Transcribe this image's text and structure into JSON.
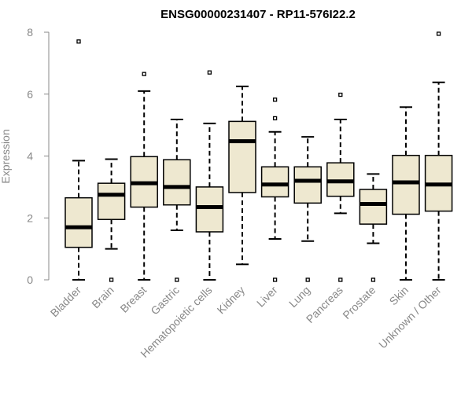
{
  "colors": {
    "box_fill": "#EEE8D0",
    "median": "#000000",
    "axis": "#888888",
    "title": "#000000"
  },
  "chart_data": {
    "type": "boxplot",
    "title": "ENSG00000231407 - RP11-576I22.2",
    "xlabel": "",
    "ylabel": "Expression",
    "ylim": [
      0,
      8
    ],
    "yticks": [
      "0",
      "2",
      "4",
      "6",
      "8"
    ],
    "categories": [
      "Bladder",
      "Brain",
      "Breast",
      "Gastric",
      "Hematopoietic cells",
      "Kidney",
      "Liver",
      "Lung",
      "Pancreas",
      "Prostate",
      "Skin",
      "Unknown / Other"
    ],
    "boxes": [
      {
        "category": "Bladder",
        "whisker_low": 0.0,
        "q1": 1.05,
        "median": 1.7,
        "q3": 2.65,
        "whisker_high": 3.85,
        "outliers": [
          7.7
        ]
      },
      {
        "category": "Brain",
        "whisker_low": 1.0,
        "q1": 1.95,
        "median": 2.75,
        "q3": 3.12,
        "whisker_high": 3.9,
        "outliers": [
          0.0
        ]
      },
      {
        "category": "Breast",
        "whisker_low": 0.0,
        "q1": 2.35,
        "median": 3.12,
        "q3": 3.98,
        "whisker_high": 6.1,
        "outliers": [
          6.65
        ]
      },
      {
        "category": "Gastric",
        "whisker_low": 1.6,
        "q1": 2.42,
        "median": 3.0,
        "q3": 3.88,
        "whisker_high": 5.18,
        "outliers": [
          0.0
        ]
      },
      {
        "category": "Hematopoietic cells",
        "whisker_low": 0.0,
        "q1": 1.55,
        "median": 2.35,
        "q3": 3.0,
        "whisker_high": 5.05,
        "outliers": [
          6.7
        ]
      },
      {
        "category": "Kidney",
        "whisker_low": 0.5,
        "q1": 2.82,
        "median": 4.48,
        "q3": 5.12,
        "whisker_high": 6.25,
        "outliers": []
      },
      {
        "category": "Liver",
        "whisker_low": 1.32,
        "q1": 2.68,
        "median": 3.08,
        "q3": 3.65,
        "whisker_high": 4.78,
        "outliers": [
          5.82,
          5.22,
          0.0
        ]
      },
      {
        "category": "Lung",
        "whisker_low": 1.25,
        "q1": 2.48,
        "median": 3.2,
        "q3": 3.65,
        "whisker_high": 4.62,
        "outliers": [
          0.0
        ]
      },
      {
        "category": "Pancreas",
        "whisker_low": 2.15,
        "q1": 2.7,
        "median": 3.18,
        "q3": 3.78,
        "whisker_high": 5.18,
        "outliers": [
          5.98,
          0.0
        ]
      },
      {
        "category": "Prostate",
        "whisker_low": 1.18,
        "q1": 1.8,
        "median": 2.45,
        "q3": 2.92,
        "whisker_high": 3.42,
        "outliers": [
          0.0
        ]
      },
      {
        "category": "Skin",
        "whisker_low": 0.0,
        "q1": 2.12,
        "median": 3.15,
        "q3": 4.02,
        "whisker_high": 5.58,
        "outliers": []
      },
      {
        "category": "Unknown / Other",
        "whisker_low": 0.0,
        "q1": 2.22,
        "median": 3.08,
        "q3": 4.02,
        "whisker_high": 6.38,
        "outliers": [
          7.95
        ]
      }
    ]
  }
}
